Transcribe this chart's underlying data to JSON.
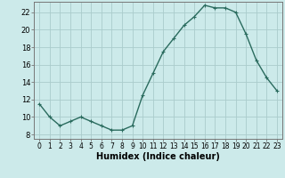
{
  "x": [
    0,
    1,
    2,
    3,
    4,
    5,
    6,
    7,
    8,
    9,
    10,
    11,
    12,
    13,
    14,
    15,
    16,
    17,
    18,
    19,
    20,
    21,
    22,
    23
  ],
  "y": [
    11.5,
    10.0,
    9.0,
    9.5,
    10.0,
    9.5,
    9.0,
    8.5,
    8.5,
    9.0,
    12.5,
    15.0,
    17.5,
    19.0,
    20.5,
    21.5,
    22.8,
    22.5,
    22.5,
    22.0,
    19.5,
    16.5,
    14.5,
    13.0
  ],
  "line_color": "#2a6b5e",
  "marker": "+",
  "marker_size": 3,
  "linewidth": 1.0,
  "bg_color": "#cceaea",
  "grid_color": "#aacccc",
  "xlabel": "Humidex (Indice chaleur)",
  "xlabel_fontsize": 7,
  "xlim": [
    -0.5,
    23.5
  ],
  "ylim": [
    7.5,
    23.2
  ],
  "yticks": [
    8,
    10,
    12,
    14,
    16,
    18,
    20,
    22
  ],
  "xticks": [
    0,
    1,
    2,
    3,
    4,
    5,
    6,
    7,
    8,
    9,
    10,
    11,
    12,
    13,
    14,
    15,
    16,
    17,
    18,
    19,
    20,
    21,
    22,
    23
  ],
  "xtick_labels": [
    "0",
    "1",
    "2",
    "3",
    "4",
    "5",
    "6",
    "7",
    "8",
    "9",
    "10",
    "11",
    "12",
    "13",
    "14",
    "15",
    "16",
    "17",
    "18",
    "19",
    "20",
    "21",
    "22",
    "23"
  ],
  "tick_fontsize": 5.5,
  "ytick_fontsize": 6.0
}
